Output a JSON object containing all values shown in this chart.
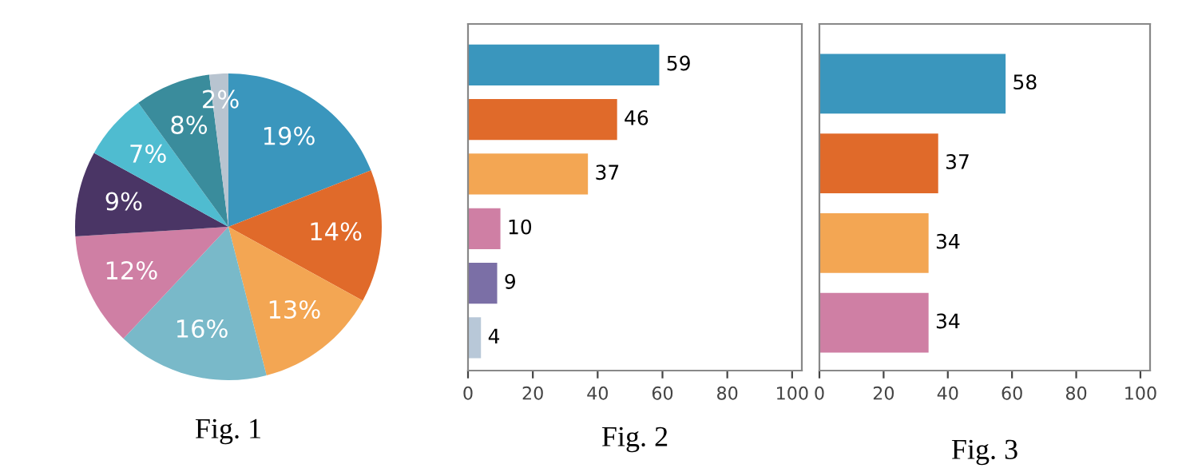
{
  "chart_data": [
    {
      "type": "pie",
      "title": "Fig. 1",
      "categories": [
        null,
        null,
        null,
        null,
        null,
        null,
        null,
        null,
        null
      ],
      "values": [
        19,
        14,
        13,
        16,
        12,
        9,
        7,
        8,
        2
      ],
      "colors": [
        "#3a96bd",
        "#e06a2a",
        "#f3a653",
        "#79b9c9",
        "#cf7fa4",
        "#4a3565",
        "#4fbcd0",
        "#3a8c9c",
        "#b8c4d0"
      ],
      "value_labels": [
        "19%",
        "14%",
        "13%",
        "16%",
        "12%",
        "9%",
        "7%",
        "8%",
        "2%"
      ]
    },
    {
      "type": "bar",
      "title": "Fig. 2",
      "orientation": "horizontal",
      "categories": [
        null,
        null,
        null,
        null,
        null,
        null
      ],
      "values": [
        59,
        46,
        37,
        10,
        9,
        4
      ],
      "colors": [
        "#3a96bd",
        "#e06a2a",
        "#f3a653",
        "#cf7fa4",
        "#7b6fa6",
        "#b8c8d8"
      ],
      "xlim": [
        0,
        103
      ],
      "xticks": [
        0,
        20,
        40,
        60,
        80,
        100
      ],
      "data_labels": true,
      "tick_labels": "x"
    },
    {
      "type": "bar",
      "title": "Fig. 3",
      "orientation": "horizontal",
      "categories": [
        null,
        null,
        null,
        null
      ],
      "values": [
        58,
        37,
        34,
        34
      ],
      "colors": [
        "#3a96bd",
        "#e06a2a",
        "#f3a653",
        "#cf7fa4"
      ],
      "xlim": [
        0,
        103
      ],
      "xticks": [
        0,
        20,
        40,
        60,
        80,
        100
      ],
      "data_labels": true,
      "tick_labels": "x"
    }
  ]
}
